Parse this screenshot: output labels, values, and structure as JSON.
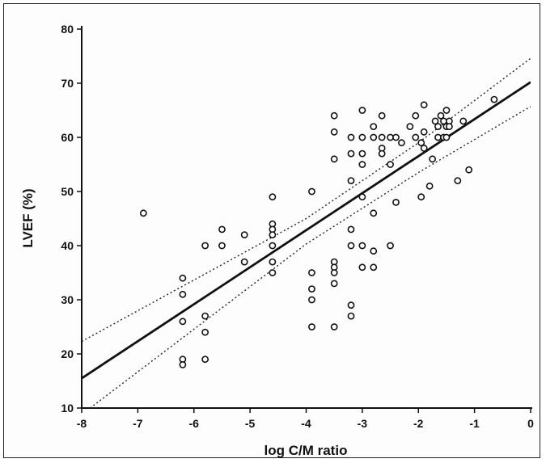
{
  "chart_data": {
    "type": "scatter",
    "title": "",
    "xlabel": "log C/M ratio",
    "ylabel": "LVEF (%)",
    "xlim": [
      -8,
      0
    ],
    "ylim": [
      10,
      80
    ],
    "x_ticks": [
      -8,
      -7,
      -6,
      -5,
      -4,
      -3,
      -2,
      -1,
      0
    ],
    "y_ticks": [
      10,
      20,
      30,
      40,
      50,
      60,
      70,
      80
    ],
    "grid": false,
    "legend": "none",
    "marker_color": "#111111",
    "points": [
      {
        "x": -6.9,
        "y": 46
      },
      {
        "x": -6.2,
        "y": 34
      },
      {
        "x": -6.2,
        "y": 31
      },
      {
        "x": -6.2,
        "y": 26
      },
      {
        "x": -6.2,
        "y": 19
      },
      {
        "x": -6.2,
        "y": 18
      },
      {
        "x": -5.8,
        "y": 40
      },
      {
        "x": -5.8,
        "y": 27
      },
      {
        "x": -5.8,
        "y": 24
      },
      {
        "x": -5.8,
        "y": 19
      },
      {
        "x": -5.5,
        "y": 43
      },
      {
        "x": -5.5,
        "y": 40
      },
      {
        "x": -5.1,
        "y": 42
      },
      {
        "x": -5.1,
        "y": 37
      },
      {
        "x": -4.6,
        "y": 49
      },
      {
        "x": -4.6,
        "y": 44
      },
      {
        "x": -4.6,
        "y": 43
      },
      {
        "x": -4.6,
        "y": 42
      },
      {
        "x": -4.6,
        "y": 40
      },
      {
        "x": -4.6,
        "y": 37
      },
      {
        "x": -4.6,
        "y": 35
      },
      {
        "x": -3.9,
        "y": 50
      },
      {
        "x": -3.9,
        "y": 35
      },
      {
        "x": -3.9,
        "y": 32
      },
      {
        "x": -3.9,
        "y": 30
      },
      {
        "x": -3.9,
        "y": 25
      },
      {
        "x": -3.5,
        "y": 64
      },
      {
        "x": -3.5,
        "y": 61
      },
      {
        "x": -3.5,
        "y": 56
      },
      {
        "x": -3.5,
        "y": 37
      },
      {
        "x": -3.5,
        "y": 36
      },
      {
        "x": -3.5,
        "y": 35
      },
      {
        "x": -3.5,
        "y": 33
      },
      {
        "x": -3.5,
        "y": 25
      },
      {
        "x": -3.2,
        "y": 60
      },
      {
        "x": -3.2,
        "y": 57
      },
      {
        "x": -3.2,
        "y": 52
      },
      {
        "x": -3.2,
        "y": 43
      },
      {
        "x": -3.2,
        "y": 40
      },
      {
        "x": -3.2,
        "y": 29
      },
      {
        "x": -3.2,
        "y": 27
      },
      {
        "x": -3.0,
        "y": 65
      },
      {
        "x": -3.0,
        "y": 60
      },
      {
        "x": -3.0,
        "y": 57
      },
      {
        "x": -3.0,
        "y": 55
      },
      {
        "x": -3.0,
        "y": 49
      },
      {
        "x": -3.0,
        "y": 40
      },
      {
        "x": -3.0,
        "y": 36
      },
      {
        "x": -2.8,
        "y": 62
      },
      {
        "x": -2.8,
        "y": 60
      },
      {
        "x": -2.8,
        "y": 46
      },
      {
        "x": -2.8,
        "y": 39
      },
      {
        "x": -2.8,
        "y": 36
      },
      {
        "x": -2.65,
        "y": 64
      },
      {
        "x": -2.65,
        "y": 60
      },
      {
        "x": -2.65,
        "y": 58
      },
      {
        "x": -2.65,
        "y": 57
      },
      {
        "x": -2.5,
        "y": 60
      },
      {
        "x": -2.5,
        "y": 55
      },
      {
        "x": -2.5,
        "y": 40
      },
      {
        "x": -2.4,
        "y": 60
      },
      {
        "x": -2.4,
        "y": 48
      },
      {
        "x": -2.3,
        "y": 59
      },
      {
        "x": -2.15,
        "y": 62
      },
      {
        "x": -2.05,
        "y": 64
      },
      {
        "x": -2.05,
        "y": 60
      },
      {
        "x": -1.95,
        "y": 59
      },
      {
        "x": -1.95,
        "y": 49
      },
      {
        "x": -1.9,
        "y": 66
      },
      {
        "x": -1.9,
        "y": 61
      },
      {
        "x": -1.9,
        "y": 58
      },
      {
        "x": -1.8,
        "y": 51
      },
      {
        "x": -1.75,
        "y": 56
      },
      {
        "x": -1.7,
        "y": 63
      },
      {
        "x": -1.65,
        "y": 62
      },
      {
        "x": -1.65,
        "y": 60
      },
      {
        "x": -1.6,
        "y": 64
      },
      {
        "x": -1.55,
        "y": 63
      },
      {
        "x": -1.55,
        "y": 60
      },
      {
        "x": -1.5,
        "y": 65
      },
      {
        "x": -1.5,
        "y": 62
      },
      {
        "x": -1.5,
        "y": 60
      },
      {
        "x": -1.45,
        "y": 63
      },
      {
        "x": -1.45,
        "y": 62
      },
      {
        "x": -1.3,
        "y": 52
      },
      {
        "x": -1.2,
        "y": 63
      },
      {
        "x": -1.1,
        "y": 54
      },
      {
        "x": -0.65,
        "y": 67
      }
    ],
    "fit_line": {
      "x": [
        -8,
        0
      ],
      "y": [
        15.5,
        70.2
      ]
    },
    "confidence_upper": {
      "x": [
        -8,
        -4,
        -2,
        0
      ],
      "y": [
        22.3,
        45.0,
        59.0,
        74.6
      ]
    },
    "confidence_lower": {
      "x": [
        -7.85,
        -4,
        -2,
        0
      ],
      "y": [
        10,
        40.3,
        53.5,
        65.7
      ]
    }
  }
}
